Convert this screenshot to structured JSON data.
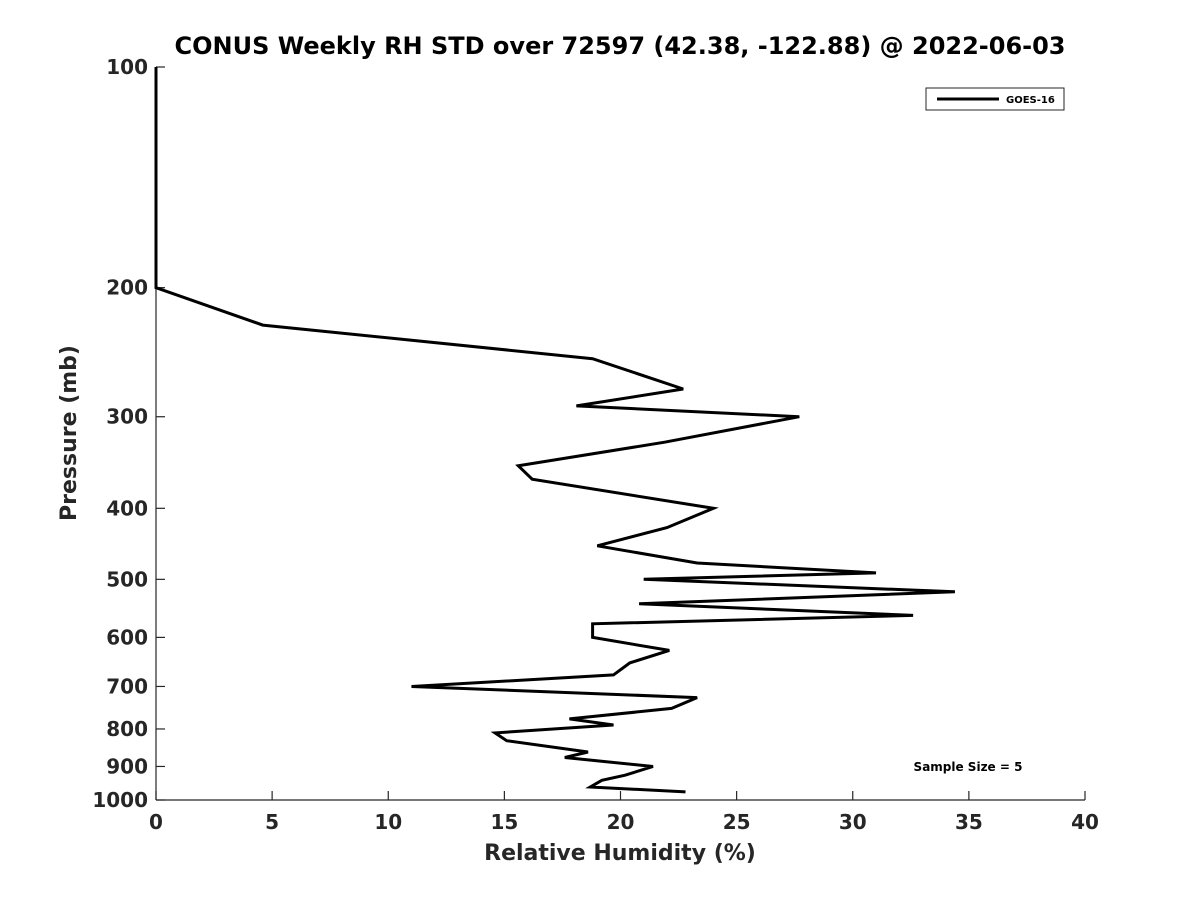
{
  "chart_data": {
    "type": "line",
    "title": "CONUS Weekly RH STD over 72597 (42.38, -122.88) @ 2022-06-03",
    "xlabel": "Relative Humidity (%)",
    "ylabel": "Pressure (mb)",
    "xlim": [
      0,
      40
    ],
    "ylim": [
      100,
      1000
    ],
    "yscale": "log",
    "y_reversed": true,
    "x_ticks": [
      0,
      5,
      10,
      15,
      20,
      25,
      30,
      35,
      40
    ],
    "y_ticks": [
      100,
      200,
      300,
      400,
      500,
      600,
      700,
      800,
      900,
      1000
    ],
    "grid": false,
    "legend_position": "top-right",
    "annotation": "Sample Size = 5",
    "series": [
      {
        "name": "GOES-16",
        "color": "#000000",
        "points": [
          {
            "x": 0.0,
            "y": 100
          },
          {
            "x": 0.0,
            "y": 150
          },
          {
            "x": 0.0,
            "y": 200
          },
          {
            "x": 4.6,
            "y": 225
          },
          {
            "x": 18.8,
            "y": 250
          },
          {
            "x": 22.7,
            "y": 275
          },
          {
            "x": 18.1,
            "y": 290
          },
          {
            "x": 27.7,
            "y": 300
          },
          {
            "x": 21.9,
            "y": 325
          },
          {
            "x": 15.6,
            "y": 350
          },
          {
            "x": 16.2,
            "y": 365
          },
          {
            "x": 24.0,
            "y": 400
          },
          {
            "x": 22.0,
            "y": 425
          },
          {
            "x": 19.0,
            "y": 450
          },
          {
            "x": 23.3,
            "y": 475
          },
          {
            "x": 31.0,
            "y": 490
          },
          {
            "x": 21.0,
            "y": 500
          },
          {
            "x": 34.4,
            "y": 520
          },
          {
            "x": 20.8,
            "y": 540
          },
          {
            "x": 32.6,
            "y": 560
          },
          {
            "x": 18.8,
            "y": 575
          },
          {
            "x": 18.8,
            "y": 600
          },
          {
            "x": 22.1,
            "y": 625
          },
          {
            "x": 20.4,
            "y": 650
          },
          {
            "x": 19.7,
            "y": 675
          },
          {
            "x": 11.0,
            "y": 700
          },
          {
            "x": 23.3,
            "y": 725
          },
          {
            "x": 22.2,
            "y": 750
          },
          {
            "x": 17.8,
            "y": 775
          },
          {
            "x": 19.7,
            "y": 790
          },
          {
            "x": 14.6,
            "y": 810
          },
          {
            "x": 15.1,
            "y": 830
          },
          {
            "x": 18.6,
            "y": 860
          },
          {
            "x": 17.6,
            "y": 875
          },
          {
            "x": 21.4,
            "y": 900
          },
          {
            "x": 20.2,
            "y": 925
          },
          {
            "x": 19.2,
            "y": 940
          },
          {
            "x": 18.7,
            "y": 960
          },
          {
            "x": 22.8,
            "y": 975
          }
        ]
      }
    ]
  }
}
